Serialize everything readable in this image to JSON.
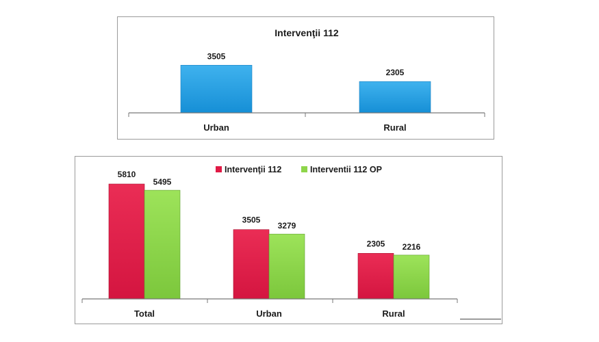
{
  "chart_data": [
    {
      "type": "bar",
      "title": "Intervenţii 112",
      "categories": [
        "Urban",
        "Rural"
      ],
      "series": [
        {
          "name": "Intervenţii 112",
          "values": [
            3505,
            2305
          ],
          "color": "#1f9ee3"
        }
      ],
      "legend": "none",
      "grid": false,
      "ylim": [
        0,
        6000
      ]
    },
    {
      "type": "bar",
      "title": "",
      "categories": [
        "Total",
        "Urban",
        "Rural"
      ],
      "series": [
        {
          "name": "Intervenţii 112",
          "values": [
            5810,
            3505,
            2305
          ],
          "color": "#e01a45"
        },
        {
          "name": "Interventii 112 OP",
          "values": [
            5495,
            3279,
            2216
          ],
          "color": "#8ed54a"
        }
      ],
      "legend": "top-center",
      "grid": false,
      "ylim": [
        0,
        6000
      ]
    }
  ]
}
